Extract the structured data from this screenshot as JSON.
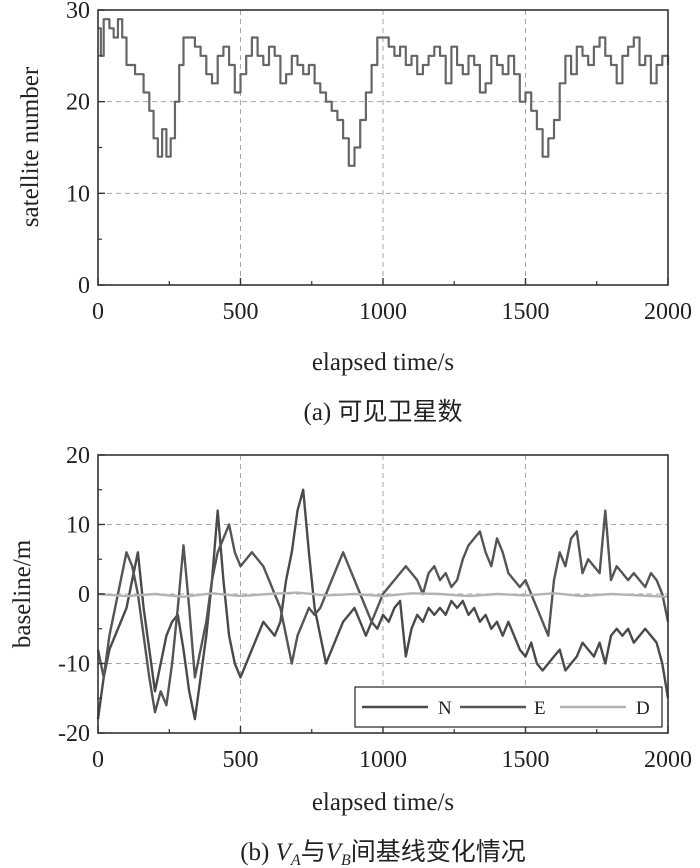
{
  "chart_data": [
    {
      "type": "line",
      "caption": "(a) 可见卫星数",
      "xlabel": "elapsed time/s",
      "ylabel": "satellite number",
      "xlim": [
        0,
        2000
      ],
      "ylim": [
        0,
        30
      ],
      "xticks": [
        0,
        500,
        1000,
        1500,
        2000
      ],
      "yticks": [
        0,
        10,
        20,
        30
      ],
      "grid": "dashed",
      "series": [
        {
          "color": "#666666",
          "x": [
            0,
            10,
            20,
            40,
            55,
            70,
            85,
            100,
            130,
            160,
            180,
            195,
            210,
            225,
            240,
            255,
            270,
            285,
            300,
            320,
            340,
            360,
            380,
            400,
            420,
            440,
            460,
            480,
            500,
            520,
            540,
            560,
            580,
            600,
            620,
            640,
            660,
            680,
            700,
            720,
            740,
            760,
            780,
            800,
            820,
            840,
            860,
            880,
            900,
            920,
            940,
            960,
            980,
            1000,
            1020,
            1040,
            1060,
            1080,
            1100,
            1120,
            1140,
            1160,
            1180,
            1200,
            1220,
            1240,
            1260,
            1280,
            1300,
            1320,
            1340,
            1360,
            1380,
            1400,
            1420,
            1440,
            1460,
            1480,
            1500,
            1520,
            1540,
            1560,
            1580,
            1600,
            1620,
            1640,
            1660,
            1680,
            1700,
            1720,
            1740,
            1760,
            1780,
            1800,
            1820,
            1840,
            1860,
            1880,
            1900,
            1920,
            1940,
            1960,
            1980,
            2000
          ],
          "y": [
            28,
            25,
            29,
            28,
            27,
            29,
            27,
            24,
            23,
            21,
            19,
            16,
            14,
            17,
            14,
            16,
            20,
            24,
            27,
            27,
            26,
            25,
            23,
            22,
            25,
            26,
            24,
            21,
            23,
            25,
            27,
            25,
            24,
            26,
            25,
            22,
            23,
            25,
            24,
            23,
            24,
            22,
            21,
            20,
            19,
            18,
            16,
            13,
            15,
            18,
            21,
            24,
            27,
            27,
            26,
            25,
            26,
            24,
            25,
            23,
            24,
            25,
            26,
            25,
            22,
            26,
            24,
            23,
            25,
            24,
            21,
            22,
            25,
            24,
            23,
            25,
            23,
            20,
            21,
            19,
            17,
            14,
            16,
            18,
            22,
            25,
            23,
            26,
            25,
            24,
            26,
            27,
            25,
            24,
            22,
            25,
            26,
            27,
            24,
            25,
            22,
            24,
            25,
            24
          ]
        }
      ]
    },
    {
      "type": "line",
      "caption_prefix": "(b) ",
      "caption_va": "V",
      "caption_va_sub": "A",
      "caption_mid": "与",
      "caption_vb": "V",
      "caption_vb_sub": "B",
      "caption_suffix": "间基线变化情况",
      "xlabel": "elapsed time/s",
      "ylabel": "baseline/m",
      "xlim": [
        0,
        2000
      ],
      "ylim": [
        -20,
        20
      ],
      "xticks": [
        0,
        500,
        1000,
        1500,
        2000
      ],
      "yticks": [
        -20,
        -10,
        0,
        10,
        20
      ],
      "grid": "dashed",
      "legend": "bottom-right",
      "series": [
        {
          "name": "N",
          "color": "#4a4a4a",
          "x": [
            0,
            20,
            40,
            60,
            80,
            100,
            120,
            140,
            160,
            180,
            200,
            220,
            240,
            260,
            280,
            300,
            320,
            340,
            360,
            380,
            400,
            420,
            440,
            460,
            480,
            500,
            520,
            540,
            560,
            580,
            600,
            620,
            640,
            660,
            680,
            700,
            720,
            740,
            760,
            780,
            800,
            820,
            840,
            860,
            880,
            900,
            920,
            940,
            960,
            980,
            1000,
            1020,
            1040,
            1060,
            1080,
            1100,
            1120,
            1140,
            1160,
            1180,
            1200,
            1220,
            1240,
            1260,
            1280,
            1300,
            1320,
            1340,
            1360,
            1380,
            1400,
            1420,
            1440,
            1460,
            1480,
            1500,
            1520,
            1540,
            1560,
            1580,
            1600,
            1620,
            1640,
            1660,
            1680,
            1700,
            1720,
            1740,
            1760,
            1780,
            1800,
            1820,
            1840,
            1860,
            1880,
            1900,
            1920,
            1940,
            1960,
            1980,
            2000
          ],
          "y": [
            -18,
            -12,
            -8,
            -6,
            -4,
            -2,
            2,
            6,
            -2,
            -8,
            -14,
            -10,
            -6,
            -4,
            -3,
            -8,
            -14,
            -18,
            -12,
            -6,
            2,
            12,
            2,
            -6,
            -10,
            -12,
            -10,
            -8,
            -6,
            -4,
            -5,
            -6,
            -4,
            2,
            6,
            12,
            15,
            6,
            -2,
            -6,
            -10,
            -8,
            -6,
            -4,
            -3,
            -2,
            -4,
            -6,
            -4,
            -5,
            -3,
            -4,
            -2,
            -1,
            -9,
            -5,
            -3,
            -4,
            -2,
            -3,
            -2,
            -3,
            -1,
            -2,
            -1,
            -3,
            -2,
            -4,
            -3,
            -5,
            -4,
            -6,
            -4,
            -6,
            -8,
            -9,
            -7,
            -10,
            -11,
            -10,
            -9,
            -8,
            -11,
            -10,
            -9,
            -7,
            -8,
            -9,
            -7,
            -10,
            -6,
            -5,
            -6,
            -5,
            -7,
            -6,
            -5,
            -6,
            -7,
            -10,
            -15
          ]
        },
        {
          "name": "E",
          "color": "#555555",
          "x": [
            0,
            20,
            40,
            60,
            80,
            100,
            120,
            140,
            160,
            180,
            200,
            220,
            240,
            260,
            280,
            300,
            320,
            340,
            360,
            380,
            400,
            420,
            440,
            460,
            480,
            500,
            520,
            540,
            560,
            580,
            600,
            620,
            640,
            660,
            680,
            700,
            720,
            740,
            760,
            780,
            800,
            820,
            840,
            860,
            880,
            900,
            920,
            940,
            960,
            980,
            1000,
            1020,
            1040,
            1060,
            1080,
            1100,
            1120,
            1140,
            1160,
            1180,
            1200,
            1220,
            1240,
            1260,
            1280,
            1300,
            1320,
            1340,
            1360,
            1380,
            1400,
            1420,
            1440,
            1460,
            1480,
            1500,
            1520,
            1540,
            1560,
            1580,
            1600,
            1620,
            1640,
            1660,
            1680,
            1700,
            1720,
            1740,
            1760,
            1780,
            1800,
            1820,
            1840,
            1860,
            1880,
            1900,
            1920,
            1940,
            1960,
            1980,
            2000
          ],
          "y": [
            -8,
            -12,
            -6,
            -2,
            2,
            6,
            4,
            0,
            -6,
            -12,
            -17,
            -14,
            -16,
            -10,
            -2,
            7,
            -2,
            -12,
            -8,
            -4,
            2,
            6,
            8,
            10,
            6,
            4,
            5,
            6,
            5,
            4,
            2,
            0,
            -2,
            -6,
            -10,
            -6,
            -4,
            -2,
            -3,
            -2,
            0,
            2,
            4,
            6,
            4,
            2,
            0,
            -2,
            -4,
            -2,
            0,
            1,
            2,
            3,
            4,
            3,
            2,
            0,
            3,
            4,
            2,
            3,
            1,
            2,
            5,
            7,
            8,
            9,
            6,
            4,
            8,
            6,
            3,
            2,
            1,
            2,
            0,
            -2,
            -4,
            -6,
            2,
            6,
            4,
            8,
            9,
            3,
            5,
            4,
            3,
            12,
            2,
            4,
            3,
            2,
            3,
            2,
            1,
            3,
            2,
            0,
            -4
          ]
        },
        {
          "name": "D",
          "color": "#b3b3b3",
          "x": [
            0,
            100,
            200,
            300,
            400,
            500,
            600,
            700,
            800,
            900,
            1000,
            1100,
            1200,
            1300,
            1400,
            1500,
            1600,
            1700,
            1800,
            1900,
            2000
          ],
          "y": [
            0,
            -0.3,
            0,
            -0.4,
            0.1,
            -0.3,
            0,
            0.2,
            -0.2,
            0,
            -0.3,
            0.1,
            0,
            -0.3,
            0,
            -0.2,
            0.1,
            -0.3,
            0,
            -0.2,
            -0.4
          ]
        }
      ]
    }
  ]
}
